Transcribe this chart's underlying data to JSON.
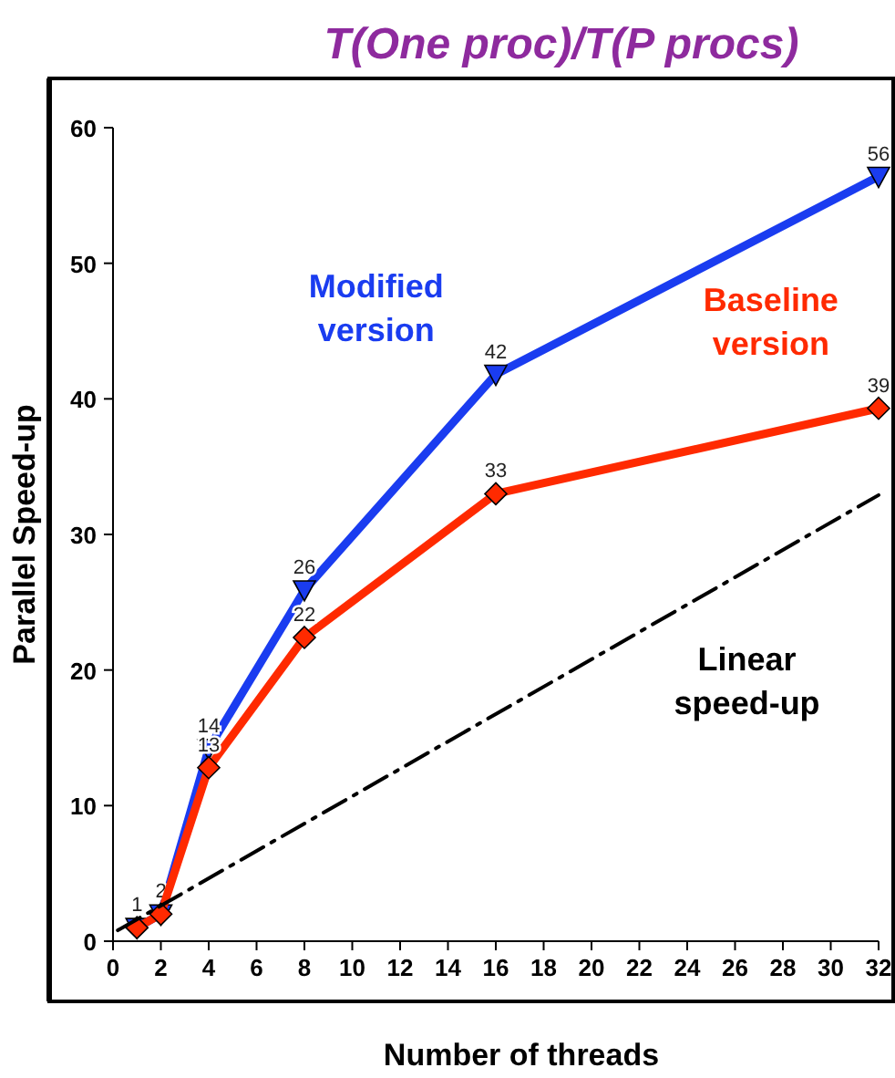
{
  "chart_data": {
    "type": "line",
    "title": "T(One proc)/T(P procs)",
    "xlabel": "Number of threads",
    "ylabel": "Parallel Speed-up",
    "xlim": [
      0,
      32
    ],
    "xticks": [
      0,
      2,
      4,
      6,
      8,
      10,
      12,
      14,
      16,
      18,
      20,
      22,
      24,
      26,
      28,
      30,
      32
    ],
    "ylim": [
      0,
      60
    ],
    "yticks": [
      0,
      10,
      20,
      30,
      40,
      50,
      60
    ],
    "grid": false,
    "x": [
      1,
      2,
      4,
      8,
      16,
      32
    ],
    "series": [
      {
        "name": "Modified version",
        "color": "#1a3cf0",
        "marker": "triangle",
        "values": [
          1.0,
          2.0,
          14.2,
          25.9,
          41.8,
          56.4
        ],
        "value_labels": [
          "1",
          "2",
          "14",
          "26",
          "42",
          "56"
        ]
      },
      {
        "name": "Baseline version",
        "color": "#ff2a00",
        "marker": "diamond",
        "values": [
          1.0,
          2.0,
          12.8,
          22.4,
          33.0,
          39.3
        ],
        "value_labels": [
          null,
          null,
          "13",
          "22",
          "33",
          "39"
        ]
      },
      {
        "name": "Linear speed-up",
        "color": "#000000",
        "marker": "none",
        "line_style": "dashed",
        "x": [
          0.2,
          32
        ],
        "values": [
          0.8,
          32.9
        ]
      }
    ]
  }
}
